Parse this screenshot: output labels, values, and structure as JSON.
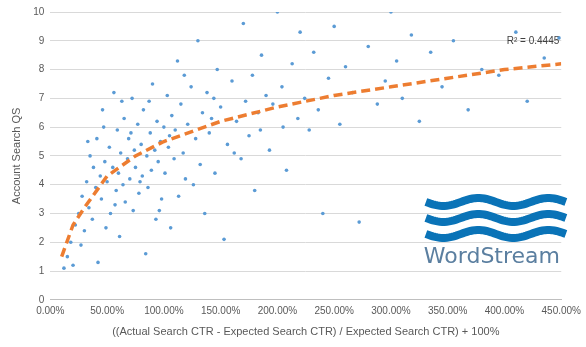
{
  "chart_data": {
    "type": "scatter",
    "x_label": "((Actual Search CTR - Expected Search CTR) / Expected Search CTR) + 100%",
    "y_label": "Account Search QS",
    "annotations": [
      "R² = 0.4445",
      "WordStream"
    ],
    "xlim": [
      0,
      450
    ],
    "xticks": [
      {
        "value": 0,
        "label": "0.00%"
      },
      {
        "value": 50,
        "label": "50.00%"
      },
      {
        "value": 100,
        "label": "100.00%"
      },
      {
        "value": 150,
        "label": "150.00%"
      },
      {
        "value": 200,
        "label": "200.00%"
      },
      {
        "value": 250,
        "label": "250.00%"
      },
      {
        "value": 300,
        "label": "300.00%"
      },
      {
        "value": 350,
        "label": "350.00%"
      },
      {
        "value": 400,
        "label": "400.00%"
      },
      {
        "value": 450,
        "label": "450.00%"
      }
    ],
    "ylim": [
      0,
      10
    ],
    "yticks": [
      0,
      1,
      2,
      3,
      4,
      5,
      6,
      7,
      8,
      9,
      10
    ],
    "grid": "y",
    "series": [
      {
        "type": "scatter",
        "color": "#5b9bd5",
        "marker": "circle",
        "x": [
          12,
          15,
          18,
          20,
          22,
          25,
          27,
          28,
          30,
          32,
          34,
          35,
          37,
          38,
          40,
          41,
          42,
          44,
          45,
          46,
          48,
          49,
          50,
          52,
          53,
          55,
          56,
          58,
          59,
          60,
          61,
          62,
          64,
          65,
          66,
          68,
          69,
          70,
          72,
          73,
          74,
          75,
          77,
          78,
          80,
          81,
          82,
          84,
          85,
          86,
          88,
          89,
          90,
          92,
          93,
          94,
          95,
          97,
          98,
          100,
          101,
          103,
          104,
          106,
          107,
          109,
          110,
          112,
          113,
          115,
          117,
          119,
          121,
          124,
          128,
          130,
          132,
          134,
          136,
          138,
          140,
          142,
          145,
          147,
          150,
          153,
          156,
          160,
          164,
          168,
          170,
          172,
          175,
          178,
          180,
          183,
          186,
          190,
          193,
          196,
          200,
          204,
          208,
          213,
          218,
          220,
          224,
          228,
          232,
          236,
          240,
          245,
          250,
          255,
          260,
          266,
          272,
          280,
          288,
          295,
          300,
          305,
          310,
          318,
          325,
          335,
          345,
          355,
          368,
          380,
          395,
          410,
          420,
          435,
          448,
          33,
          47,
          57,
          63,
          71,
          79,
          87,
          96,
          105,
          118,
          126,
          144,
          162,
          185,
          205
        ],
        "values": [
          1.1,
          1.5,
          2.0,
          1.2,
          2.6,
          3.0,
          1.9,
          3.6,
          2.4,
          4.1,
          3.2,
          5.0,
          2.8,
          4.6,
          3.9,
          5.6,
          1.3,
          4.3,
          3.5,
          6.6,
          4.8,
          2.5,
          4.1,
          5.3,
          3.0,
          4.6,
          7.2,
          3.8,
          5.9,
          4.4,
          2.2,
          5.1,
          4.0,
          6.3,
          3.4,
          4.9,
          5.6,
          4.2,
          7.0,
          3.1,
          5.2,
          4.6,
          6.1,
          3.7,
          5.4,
          4.3,
          6.6,
          1.6,
          5.0,
          3.9,
          5.8,
          4.5,
          7.5,
          5.2,
          2.8,
          6.2,
          4.8,
          5.5,
          3.5,
          6.0,
          4.4,
          7.1,
          5.3,
          2.5,
          6.4,
          4.9,
          5.9,
          8.3,
          3.6,
          6.8,
          5.1,
          4.2,
          6.1,
          7.4,
          5.6,
          9.0,
          4.7,
          6.5,
          3.0,
          7.2,
          5.8,
          6.3,
          4.4,
          8.0,
          6.7,
          2.1,
          5.4,
          7.6,
          6.2,
          4.9,
          9.6,
          6.9,
          5.7,
          7.8,
          3.8,
          6.5,
          8.5,
          7.1,
          5.2,
          6.8,
          10.0,
          7.4,
          4.5,
          8.2,
          6.3,
          9.3,
          7.0,
          5.9,
          8.6,
          6.6,
          3.0,
          7.7,
          9.5,
          6.1,
          8.1,
          7.2,
          2.7,
          8.8,
          6.8,
          7.6,
          10.0,
          8.3,
          7.0,
          9.2,
          6.2,
          8.6,
          7.4,
          9.0,
          6.6,
          8.0,
          7.8,
          9.3,
          6.9,
          8.4,
          9.1,
          5.5,
          6.0,
          3.3,
          6.9,
          5.8,
          4.1,
          6.9,
          3.1,
          5.7,
          7.8,
          4.0,
          7.0,
          5.1,
          5.9,
          6.0
        ]
      },
      {
        "type": "line",
        "color": "#ed7d31",
        "line_style": "dashed",
        "x": [
          10,
          20,
          30,
          50,
          75,
          100,
          150,
          200,
          250,
          300,
          350,
          400,
          450
        ],
        "values": [
          1.5,
          2.6,
          3.2,
          4.3,
          5.0,
          5.5,
          6.2,
          6.7,
          7.1,
          7.4,
          7.7,
          8.0,
          8.2
        ]
      }
    ]
  }
}
